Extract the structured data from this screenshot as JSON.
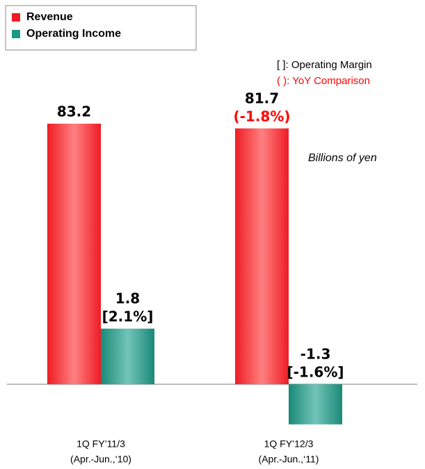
{
  "chart_data": {
    "type": "bar",
    "legend": "top-left",
    "notes": [
      "[ ]: Operating Margin",
      "( ): YoY Comparison"
    ],
    "unit_label": "Billions of yen",
    "categories": [
      "1Q FY’11/3",
      "1Q FY’12/3"
    ],
    "category_periods": [
      "(Apr.-Jun.,‘10)",
      "(Apr.-Jun.,‘11)"
    ],
    "series": [
      {
        "name": "Revenue",
        "color": "#ee1c25",
        "values": [
          83.2,
          81.7
        ],
        "annotations": [
          null,
          "(-1.8%)"
        ],
        "annotation_color": "#ff0000"
      },
      {
        "name": "Operating Income",
        "color": "#1a9a85",
        "axis": "y2",
        "values": [
          1.8,
          -1.3
        ],
        "annotations": [
          "[2.1%]",
          "[-1.6%]"
        ],
        "annotation_color": "#000000"
      }
    ]
  }
}
